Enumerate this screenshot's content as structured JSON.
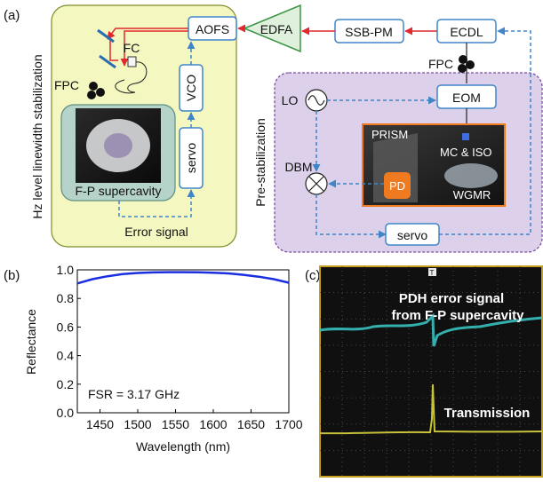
{
  "panels": {
    "a": "(a)",
    "b": "(b)",
    "c": "(c)"
  },
  "panel_a": {
    "left_region_label": "Hz level linewidth stabilization",
    "right_region_label": "Pre-stabilization",
    "blocks": {
      "aofs": "AOFS",
      "edfa": "EDFA",
      "ssb_pm": "SSB-PM",
      "ecdl": "ECDL",
      "vco": "VCO",
      "servo_left": "servo",
      "eom": "EOM",
      "servo_right": "servo"
    },
    "labels": {
      "fc": "FC",
      "fpc_left": "FPC",
      "fpc_right": "FPC",
      "lo": "LO",
      "dbm": "DBM",
      "fp_cavity": "F-P supercavity",
      "error_signal": "Error signal",
      "prism": "PRISM",
      "mc_iso": "MC & ISO",
      "pd": "PD",
      "wgmr": "WGMR"
    },
    "colors": {
      "left_bg": "#f4f7c0",
      "right_bg": "#ddd0ea",
      "cavity_bg": "#b5d3c8",
      "optical_path": "#e0292c",
      "electrical_path": "#3f86c8",
      "pd": "#f07a1f"
    }
  },
  "chart_data": {
    "type": "line",
    "title": "",
    "xlabel": "Wavelength (nm)",
    "ylabel": "Reflectance",
    "xlim": [
      1420,
      1700
    ],
    "ylim": [
      0.0,
      1.0
    ],
    "xticks": [
      1450,
      1500,
      1550,
      1600,
      1650,
      1700
    ],
    "yticks": [
      0.0,
      0.2,
      0.4,
      0.6,
      0.8,
      1.0
    ],
    "annotation": "FSR = 3.17 GHz",
    "series": [
      {
        "x": [
          1420,
          1440,
          1460,
          1480,
          1500,
          1520,
          1540,
          1560,
          1580,
          1600,
          1620,
          1640,
          1660,
          1680,
          1700
        ],
        "y": [
          0.905,
          0.935,
          0.955,
          0.97,
          0.978,
          0.982,
          0.984,
          0.984,
          0.983,
          0.98,
          0.975,
          0.965,
          0.952,
          0.935,
          0.91
        ],
        "color": "#1a2ee0"
      }
    ],
    "grid": false
  },
  "panel_c": {
    "label_pdh_line1": "PDH error signal",
    "label_pdh_line2": "from F-P supercavity",
    "label_transmission": "Transmission",
    "trigger_marker": "T",
    "colors": {
      "background": "#101010",
      "border": "#c8a020",
      "error_trace": "#37c2c0",
      "trans_trace": "#c8c23a"
    }
  }
}
